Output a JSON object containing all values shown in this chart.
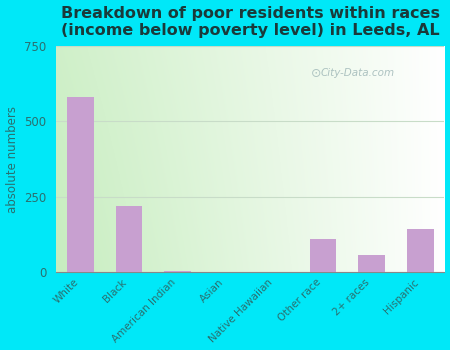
{
  "categories": [
    "White",
    "Black",
    "American Indian",
    "Asian",
    "Native Hawaiian",
    "Other race",
    "2+ races",
    "Hispanic"
  ],
  "values": [
    580,
    220,
    5,
    0,
    0,
    110,
    58,
    145
  ],
  "bar_color": "#c8a0d0",
  "title": "Breakdown of poor residents within races\n(income below poverty level) in Leeds, AL",
  "ylabel": "absolute numbers",
  "ylim": [
    0,
    750
  ],
  "yticks": [
    0,
    250,
    500,
    750
  ],
  "bg_gradient_left": "#c8e8c0",
  "bg_gradient_right": "#f0fff0",
  "outer_bg": "#00e8f8",
  "title_color": "#1a3a3a",
  "label_color": "#2a7070",
  "title_fontsize": 11.5,
  "watermark": "City-Data.com",
  "grid_color": "#c8dcc8"
}
